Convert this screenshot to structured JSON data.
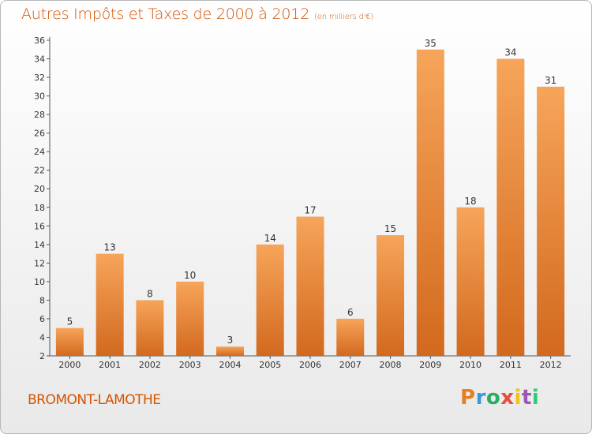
{
  "header": {
    "title": "Autres Impôts et Taxes de 2000 à 2012",
    "subtitle": "(en milliers d'€)"
  },
  "footer": {
    "city": "BROMONT-LAMOTHE",
    "logo_text": "Proxiti",
    "logo_colors": [
      "#e67e22",
      "#3498db",
      "#27ae60",
      "#e74c3c",
      "#f1c40f",
      "#9b59b6",
      "#2ecc71"
    ]
  },
  "colors": {
    "accent": "#d35400",
    "bar_top": "#f6a55a",
    "bar_bottom": "#d2691e"
  },
  "chart_data": {
    "type": "bar",
    "title": "Autres Impôts et Taxes de 2000 à 2012",
    "subtitle": "(en milliers d'€)",
    "categories": [
      "2000",
      "2001",
      "2002",
      "2003",
      "2004",
      "2005",
      "2006",
      "2007",
      "2008",
      "2009",
      "2010",
      "2011",
      "2012"
    ],
    "values": [
      5,
      13,
      8,
      10,
      3,
      14,
      17,
      6,
      15,
      35,
      18,
      34,
      31
    ],
    "yticks": [
      2,
      4,
      6,
      8,
      10,
      12,
      14,
      16,
      18,
      20,
      22,
      24,
      26,
      28,
      30,
      32,
      34,
      36
    ],
    "ylim": [
      2,
      36
    ],
    "grid": false,
    "data_labels": true
  }
}
